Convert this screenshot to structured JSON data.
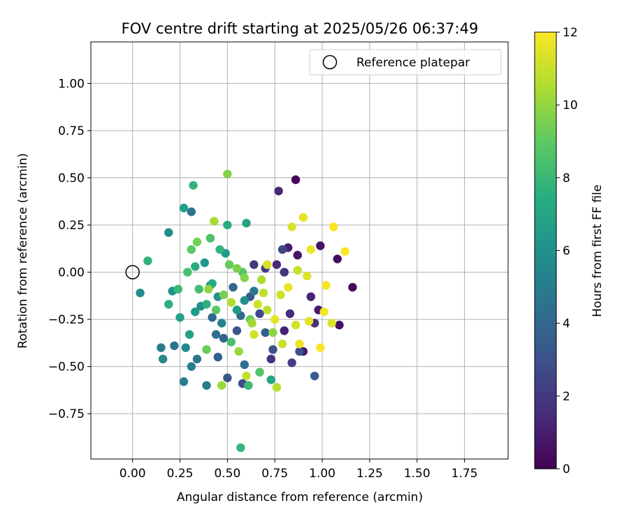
{
  "chart_data": {
    "type": "scatter",
    "title": "FOV centre drift starting at 2025/05/26 06:37:49",
    "xlabel": "Angular distance from reference (arcmin)",
    "ylabel": "Rotation from reference (arcmin)",
    "xlim": [
      -0.22,
      1.98
    ],
    "ylim": [
      -0.99,
      1.22
    ],
    "xticks": [
      "0.00",
      "0.25",
      "0.50",
      "0.75",
      "1.00",
      "1.25",
      "1.50",
      "1.75"
    ],
    "xtick_values": [
      0,
      0.25,
      0.5,
      0.75,
      1.0,
      1.25,
      1.5,
      1.75
    ],
    "yticks": [
      "−0.75",
      "−0.50",
      "−0.25",
      "0.00",
      "0.25",
      "0.50",
      "0.75",
      "1.00"
    ],
    "ytick_values": [
      -0.75,
      -0.5,
      -0.25,
      0,
      0.25,
      0.5,
      0.75,
      1.0
    ],
    "grid": true,
    "legend": {
      "label": "Reference platepar",
      "placement": "top-right"
    },
    "reference_point": {
      "x": 0,
      "y": 0
    },
    "colorbar": {
      "label": "Hours from first FF file",
      "range": [
        0,
        12
      ],
      "ticks": [
        "0",
        "2",
        "4",
        "6",
        "8",
        "10",
        "12"
      ],
      "tick_values": [
        0,
        2,
        4,
        6,
        8,
        10,
        12
      ],
      "colormap": "viridis"
    },
    "points": [
      [
        0.86,
        0.49,
        0.2
      ],
      [
        1.16,
        -0.08,
        0.3
      ],
      [
        1.08,
        0.07,
        0.4
      ],
      [
        1.09,
        -0.28,
        0.5
      ],
      [
        0.99,
        0.14,
        0.6
      ],
      [
        0.87,
        0.09,
        0.7
      ],
      [
        0.9,
        -0.42,
        0.8
      ],
      [
        0.98,
        -0.2,
        0.9
      ],
      [
        0.82,
        0.13,
        1.0
      ],
      [
        0.8,
        -0.31,
        1.1
      ],
      [
        0.94,
        -0.13,
        1.2
      ],
      [
        0.77,
        0.43,
        1.3
      ],
      [
        0.76,
        0.04,
        1.4
      ],
      [
        0.83,
        -0.22,
        1.5
      ],
      [
        0.96,
        -0.27,
        1.6
      ],
      [
        0.73,
        -0.46,
        1.7
      ],
      [
        0.8,
        0.0,
        1.8
      ],
      [
        0.64,
        0.04,
        2.0
      ],
      [
        0.84,
        -0.48,
        2.1
      ],
      [
        0.7,
        0.02,
        2.2
      ],
      [
        0.61,
        -0.6,
        2.4
      ],
      [
        0.79,
        0.12,
        2.5
      ],
      [
        0.67,
        -0.22,
        2.6
      ],
      [
        0.58,
        -0.59,
        2.8
      ],
      [
        0.88,
        -0.42,
        2.9
      ],
      [
        0.74,
        -0.41,
        3.0
      ],
      [
        0.55,
        -0.31,
        3.2
      ],
      [
        0.5,
        -0.56,
        3.3
      ],
      [
        0.62,
        -0.13,
        3.4
      ],
      [
        0.96,
        -0.55,
        3.5
      ],
      [
        0.45,
        -0.45,
        3.6
      ],
      [
        0.7,
        -0.32,
        3.7
      ],
      [
        0.48,
        -0.35,
        3.8
      ],
      [
        0.53,
        -0.08,
        3.9
      ],
      [
        0.42,
        -0.24,
        4.0
      ],
      [
        0.57,
        -0.23,
        4.2
      ],
      [
        0.44,
        -0.33,
        4.3
      ],
      [
        0.59,
        -0.49,
        4.4
      ],
      [
        0.31,
        0.32,
        4.5
      ],
      [
        0.22,
        -0.39,
        4.6
      ],
      [
        0.34,
        -0.46,
        4.7
      ],
      [
        0.64,
        -0.1,
        4.8
      ],
      [
        0.15,
        -0.4,
        4.9
      ],
      [
        0.39,
        -0.6,
        5.0
      ],
      [
        0.31,
        -0.5,
        5.1
      ],
      [
        0.27,
        -0.58,
        5.2
      ],
      [
        0.41,
        -0.07,
        5.3
      ],
      [
        0.47,
        -0.27,
        5.4
      ],
      [
        0.16,
        -0.46,
        5.5
      ],
      [
        0.28,
        -0.4,
        5.6
      ],
      [
        0.04,
        -0.11,
        5.7
      ],
      [
        0.19,
        0.21,
        5.8
      ],
      [
        0.36,
        -0.18,
        5.9
      ],
      [
        0.59,
        -0.15,
        6.0
      ],
      [
        0.45,
        -0.13,
        6.1
      ],
      [
        0.21,
        -0.1,
        6.2
      ],
      [
        0.38,
        0.05,
        6.3
      ],
      [
        0.33,
        -0.21,
        6.4
      ],
      [
        0.49,
        0.1,
        6.5
      ],
      [
        0.55,
        -0.2,
        6.6
      ],
      [
        0.27,
        0.34,
        6.7
      ],
      [
        0.25,
        -0.24,
        6.8
      ],
      [
        0.3,
        -0.33,
        6.9
      ],
      [
        0.6,
        0.26,
        7.0
      ],
      [
        0.73,
        -0.57,
        7.1
      ],
      [
        0.42,
        -0.06,
        7.2
      ],
      [
        0.5,
        0.25,
        7.3
      ],
      [
        0.33,
        0.03,
        7.4
      ],
      [
        0.19,
        -0.17,
        7.5
      ],
      [
        0.39,
        -0.17,
        7.6
      ],
      [
        0.08,
        0.06,
        7.7
      ],
      [
        0.46,
        0.12,
        7.8
      ],
      [
        0.32,
        0.46,
        7.9
      ],
      [
        0.57,
        -0.93,
        8.0
      ],
      [
        0.24,
        -0.09,
        8.1
      ],
      [
        0.61,
        -0.6,
        8.2
      ],
      [
        0.35,
        -0.09,
        8.3
      ],
      [
        0.29,
        0.0,
        8.4
      ],
      [
        0.52,
        -0.37,
        8.5
      ],
      [
        0.41,
        0.18,
        8.6
      ],
      [
        0.67,
        -0.53,
        8.7
      ],
      [
        0.58,
        0.0,
        8.8
      ],
      [
        0.31,
        0.12,
        8.9
      ],
      [
        0.44,
        -0.2,
        9.0
      ],
      [
        0.51,
        0.04,
        9.1
      ],
      [
        0.39,
        -0.41,
        9.2
      ],
      [
        0.62,
        -0.25,
        9.3
      ],
      [
        0.34,
        0.16,
        9.4
      ],
      [
        0.48,
        -0.12,
        9.5
      ],
      [
        0.55,
        0.02,
        9.6
      ],
      [
        0.5,
        0.52,
        9.7
      ],
      [
        0.59,
        -0.03,
        9.8
      ],
      [
        0.74,
        -0.32,
        9.9
      ],
      [
        0.4,
        -0.09,
        10.0
      ],
      [
        0.56,
        -0.42,
        10.1
      ],
      [
        0.47,
        -0.6,
        10.2
      ],
      [
        0.63,
        -0.27,
        10.3
      ],
      [
        0.43,
        0.27,
        10.4
      ],
      [
        0.68,
        -0.04,
        10.5
      ],
      [
        0.52,
        -0.16,
        10.6
      ],
      [
        0.76,
        -0.61,
        10.7
      ],
      [
        0.71,
        -0.2,
        10.8
      ],
      [
        0.6,
        -0.55,
        10.9
      ],
      [
        0.79,
        -0.38,
        11.0
      ],
      [
        0.66,
        -0.17,
        11.1
      ],
      [
        0.86,
        -0.28,
        11.2
      ],
      [
        0.84,
        0.24,
        11.3
      ],
      [
        0.92,
        -0.02,
        11.4
      ],
      [
        0.75,
        -0.25,
        11.5
      ],
      [
        0.9,
        0.29,
        11.6
      ],
      [
        0.94,
        0.12,
        11.7
      ],
      [
        1.02,
        -0.07,
        11.8
      ],
      [
        1.06,
        0.24,
        11.9
      ],
      [
        0.99,
        -0.4,
        11.9
      ],
      [
        1.12,
        0.11,
        12.0
      ],
      [
        1.01,
        -0.21,
        11.8
      ],
      [
        0.88,
        -0.38,
        11.7
      ],
      [
        0.82,
        -0.08,
        11.6
      ],
      [
        0.93,
        -0.26,
        11.5
      ],
      [
        1.05,
        -0.27,
        11.4
      ],
      [
        0.71,
        0.04,
        11.3
      ],
      [
        0.64,
        -0.33,
        11.2
      ],
      [
        0.78,
        -0.12,
        11.1
      ],
      [
        0.87,
        0.01,
        11.0
      ],
      [
        0.69,
        -0.11,
        10.9
      ]
    ]
  }
}
